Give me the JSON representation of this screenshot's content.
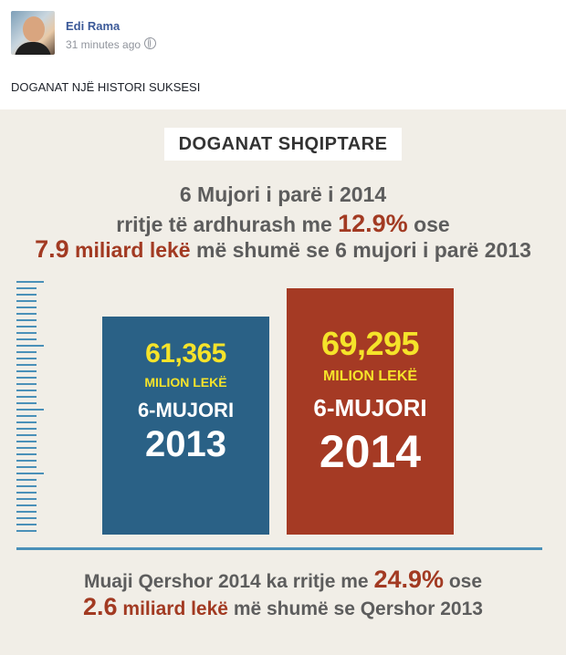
{
  "post": {
    "author": "Edi Rama",
    "time": "31 minutes ago",
    "visibility_icon": "globe-icon",
    "text": "DOGANAT NJË HISTORI SUKSESI"
  },
  "infographic": {
    "title": "DOGANAT SHQIPTARE",
    "headline": {
      "line1": "6 Mujori i parë i 2014",
      "line2_pre": "rritje të ardhurash me ",
      "line2_pct": "12.9%",
      "line2_post": " ose",
      "line3_num": "7.9",
      "line3_unit": " miliard lekë",
      "line3_post": " më shumë se 6 mujori i parë 2013"
    },
    "footer": {
      "line1_pre": "Muaji Qershor 2014 ka rritje me ",
      "line1_pct": "24.9%",
      "line1_post": " ose",
      "line2_num": "2.6",
      "line2_unit": " miliard lekë",
      "line2_post": " më shumë se Qershor 2013"
    },
    "colors": {
      "bar_2013": "#2a6186",
      "bar_2014": "#a53a24",
      "value_text": "#f5e32a",
      "accent": "#a23a22"
    }
  },
  "chart_data": {
    "type": "bar",
    "categories": [
      "6-MUJORI 2013",
      "6-MUJORI 2014"
    ],
    "values": [
      61365,
      69295
    ],
    "value_labels": [
      "61,365",
      "69,295"
    ],
    "unit_label": "MILION LEKË",
    "period_label": "6-MUJORI",
    "years": [
      "2013",
      "2014"
    ],
    "title": "DOGANAT SHQIPTARE",
    "ylim": [
      0,
      80000
    ],
    "grid": false
  }
}
